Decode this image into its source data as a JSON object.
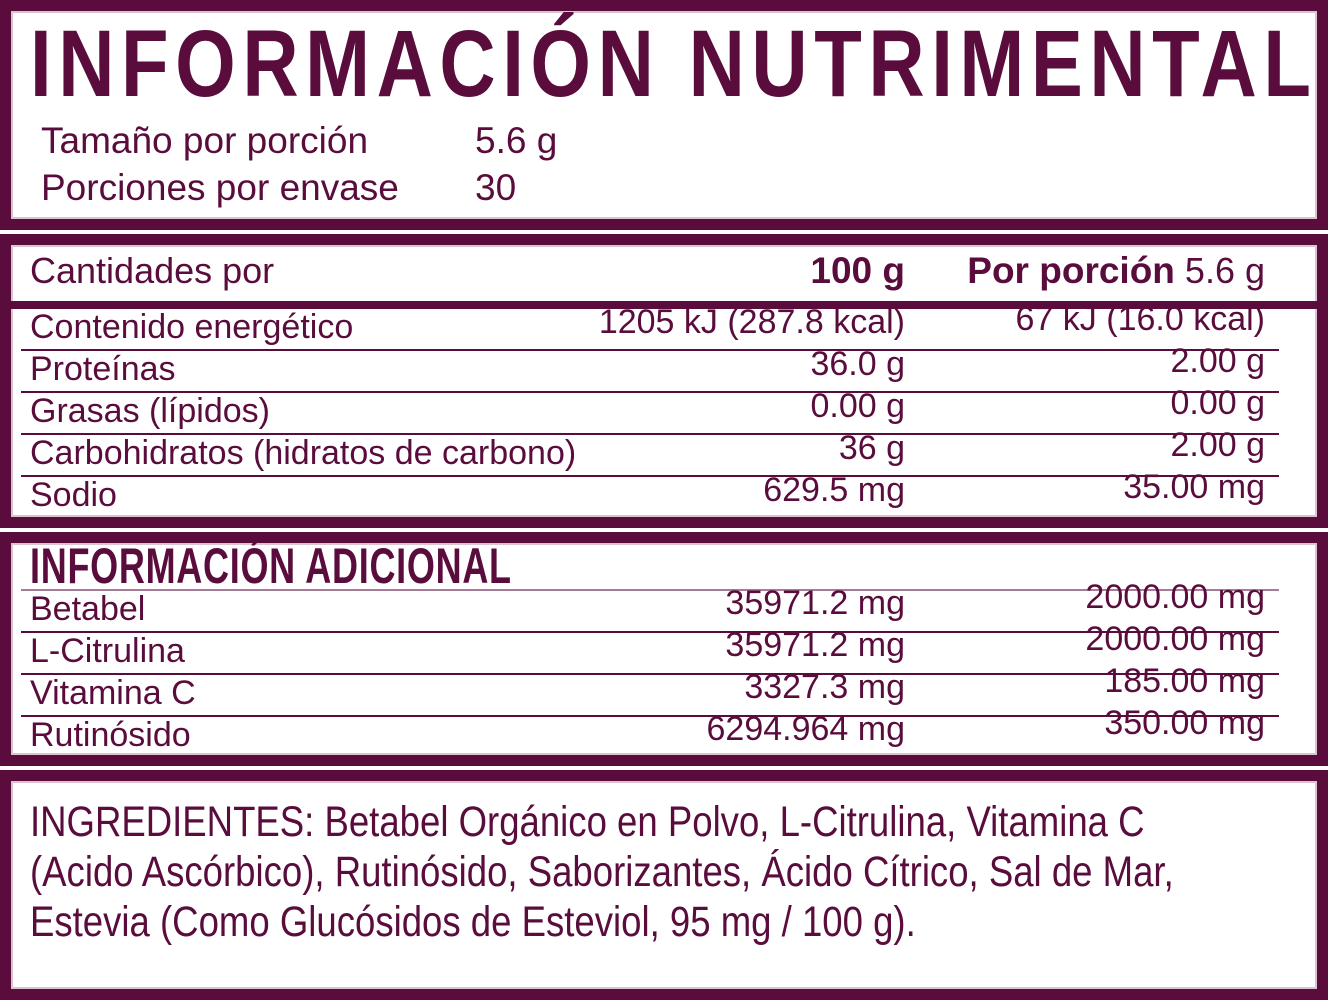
{
  "colors": {
    "maroon": "#5A0D3C",
    "inner_hairline": "#DCC3D1",
    "light_rule": "#A87C97"
  },
  "title": "INFORMACIÓN NUTRIMENTAL",
  "serving_info": {
    "rows": [
      {
        "label": "Tamaño por porción",
        "value": "5.6 g"
      },
      {
        "label": "Porciones por envase",
        "value": "30"
      }
    ]
  },
  "nutrition_table": {
    "header": {
      "label": "Cantidades por",
      "per100": "100 g",
      "portion_label": "Por porción",
      "portion_value": "5.6 g"
    },
    "rows": [
      {
        "label": "Contenido energético",
        "per100": "1205 kJ (287.8 kcal)",
        "portion": "67 kJ (16.0 kcal)"
      },
      {
        "label": "Proteínas",
        "per100": "36.0 g",
        "portion": "2.00 g"
      },
      {
        "label": "Grasas (lípidos)",
        "per100": "0.00 g",
        "portion": "0.00 g"
      },
      {
        "label": "Carbohidratos (hidratos de carbono)",
        "per100": "36 g",
        "portion": "2.00 g"
      },
      {
        "label": "Sodio",
        "per100": "629.5 mg",
        "portion": "35.00 mg"
      }
    ]
  },
  "additional_info": {
    "header": "INFORMACIÓN ADICIONAL",
    "rows": [
      {
        "label": "Betabel",
        "per100": "35971.2 mg",
        "portion": "2000.00 mg"
      },
      {
        "label": "L-Citrulina",
        "per100": "35971.2 mg",
        "portion": "2000.00 mg"
      },
      {
        "label": "Vitamina C",
        "per100": "3327.3 mg",
        "portion": "185.00 mg"
      },
      {
        "label": "Rutinósido",
        "per100": "6294.964 mg",
        "portion": "350.00 mg"
      }
    ]
  },
  "ingredients": {
    "lines": [
      "INGREDIENTES: Betabel Orgánico en Polvo, L-Citrulina, Vitamina C",
      "(Acido Ascórbico), Rutinósido, Saborizantes, Ácido Cítrico, Sal de Mar,",
      "Estevia (Como Glucósidos de Esteviol, 95 mg / 100 g)."
    ],
    "full_text": "INGREDIENTES: Betabel Orgánico en Polvo, L-Citrulina, Vitamina C (Acido Ascórbico), Rutinósido, Saborizantes, Ácido Cítrico, Sal de Mar, Estevia (Como Glucósidos de Esteviol, 95 mg / 100 g)."
  }
}
